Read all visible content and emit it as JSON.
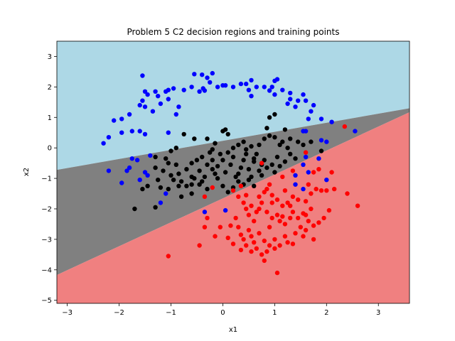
{
  "chart_data": {
    "type": "scatter",
    "title": "Problem 5 C2 decision regions and training points",
    "xlabel": "x1",
    "ylabel": "x2",
    "xlim": [
      -3.2,
      3.6
    ],
    "ylim": [
      -5.1,
      3.5
    ],
    "xticks": [
      -3,
      -2,
      -1,
      0,
      1,
      2,
      3
    ],
    "yticks": [
      -5,
      -4,
      -3,
      -2,
      -1,
      0,
      1,
      2,
      3
    ],
    "grid": false,
    "regions": [
      {
        "class": "blue",
        "color": "#add8e6"
      },
      {
        "class": "black",
        "color": "#808080"
      },
      {
        "class": "red",
        "color": "#f08080"
      }
    ],
    "boundaries": [
      {
        "between": [
          "blue",
          "black"
        ],
        "from": [
          -3.2,
          -0.72
        ],
        "to": [
          3.6,
          1.3
        ]
      },
      {
        "between": [
          "black",
          "red"
        ],
        "from": [
          -3.2,
          -4.17
        ],
        "to": [
          3.6,
          1.17
        ]
      }
    ],
    "series": [
      {
        "color": "#0000ff",
        "points": [
          [
            -1.55,
            2.37
          ],
          [
            -0.55,
            2.42
          ],
          [
            -0.4,
            2.4
          ],
          [
            -0.2,
            2.45
          ],
          [
            -0.3,
            2.3
          ],
          [
            -0.25,
            2.15
          ],
          [
            -0.38,
            1.95
          ],
          [
            -0.6,
            2.0
          ],
          [
            -0.35,
            1.88
          ],
          [
            -0.45,
            1.85
          ],
          [
            -0.1,
            2.0
          ],
          [
            0.0,
            2.05
          ],
          [
            0.05,
            2.05
          ],
          [
            0.2,
            2.0
          ],
          [
            0.35,
            2.1
          ],
          [
            0.45,
            2.1
          ],
          [
            0.55,
            2.22
          ],
          [
            0.65,
            2.0
          ],
          [
            0.5,
            1.9
          ],
          [
            0.55,
            1.7
          ],
          [
            0.8,
            2.0
          ],
          [
            0.9,
            1.88
          ],
          [
            0.95,
            2.0
          ],
          [
            1.0,
            2.2
          ],
          [
            1.05,
            2.25
          ],
          [
            1.0,
            1.75
          ],
          [
            1.15,
            1.9
          ],
          [
            1.3,
            1.8
          ],
          [
            1.3,
            1.6
          ],
          [
            1.25,
            1.45
          ],
          [
            1.4,
            1.35
          ],
          [
            1.45,
            1.55
          ],
          [
            1.55,
            1.75
          ],
          [
            1.6,
            1.55
          ],
          [
            1.7,
            1.2
          ],
          [
            1.75,
            1.4
          ],
          [
            1.65,
            0.95
          ],
          [
            1.9,
            0.95
          ],
          [
            2.1,
            0.85
          ],
          [
            2.55,
            0.55
          ],
          [
            -1.5,
            1.85
          ],
          [
            -1.45,
            1.75
          ],
          [
            -1.3,
            1.85
          ],
          [
            -1.25,
            1.7
          ],
          [
            -1.1,
            1.85
          ],
          [
            -1.05,
            1.9
          ],
          [
            -0.95,
            1.95
          ],
          [
            -0.75,
            1.9
          ],
          [
            -1.05,
            1.6
          ],
          [
            -1.2,
            1.45
          ],
          [
            -1.35,
            1.2
          ],
          [
            -1.5,
            1.35
          ],
          [
            -1.55,
            1.55
          ],
          [
            -1.6,
            1.4
          ],
          [
            -1.8,
            1.1
          ],
          [
            -1.95,
            0.95
          ],
          [
            -2.1,
            0.9
          ],
          [
            -2.2,
            0.35
          ],
          [
            -2.3,
            0.15
          ],
          [
            -1.75,
            0.55
          ],
          [
            -1.95,
            0.5
          ],
          [
            -1.6,
            0.55
          ],
          [
            -1.5,
            0.45
          ],
          [
            -1.05,
            0.5
          ],
          [
            -0.85,
            1.35
          ],
          [
            -0.9,
            1.1
          ],
          [
            -1.4,
            -0.25
          ],
          [
            -1.75,
            -0.35
          ],
          [
            -1.65,
            -0.4
          ],
          [
            -1.8,
            -0.65
          ],
          [
            -1.85,
            -0.75
          ],
          [
            -1.5,
            -0.8
          ],
          [
            -1.45,
            -0.9
          ],
          [
            -1.95,
            -1.15
          ],
          [
            -2.2,
            -0.75
          ],
          [
            -1.6,
            -1.05
          ],
          [
            -1.2,
            -1.8
          ],
          [
            -1.1,
            -1.5
          ],
          [
            -0.35,
            -2.1
          ],
          [
            0.05,
            -2.05
          ],
          [
            1.55,
            0.55
          ],
          [
            1.6,
            0.55
          ],
          [
            1.9,
            0.25
          ],
          [
            2.0,
            0.2
          ],
          [
            1.6,
            -0.3
          ],
          [
            1.55,
            -0.55
          ],
          [
            1.85,
            -0.35
          ],
          [
            1.65,
            -0.8
          ],
          [
            1.4,
            -0.9
          ],
          [
            1.4,
            -1.2
          ],
          [
            2.0,
            -1.05
          ],
          [
            1.55,
            -1.35
          ]
        ]
      },
      {
        "color": "#000000",
        "points": [
          [
            -1.1,
            -0.35
          ],
          [
            -1.05,
            -0.5
          ],
          [
            -1.15,
            -0.75
          ],
          [
            -0.9,
            -0.55
          ],
          [
            -0.85,
            -0.85
          ],
          [
            -1.0,
            -0.9
          ],
          [
            -0.8,
            -1.1
          ],
          [
            -0.7,
            -0.7
          ],
          [
            -0.6,
            -0.5
          ],
          [
            -0.6,
            -0.95
          ],
          [
            -0.5,
            -0.4
          ],
          [
            -0.45,
            -0.75
          ],
          [
            -0.45,
            -1.2
          ],
          [
            -0.35,
            -0.95
          ],
          [
            -0.3,
            -0.55
          ],
          [
            -0.25,
            -0.15
          ],
          [
            -0.2,
            -0.4
          ],
          [
            -0.15,
            -0.85
          ],
          [
            -0.1,
            -1.0
          ],
          [
            -0.05,
            -0.2
          ],
          [
            0.0,
            -0.4
          ],
          [
            0.05,
            -0.8
          ],
          [
            0.1,
            -0.15
          ],
          [
            0.15,
            -0.55
          ],
          [
            0.2,
            -0.3
          ],
          [
            0.25,
            -0.95
          ],
          [
            0.3,
            -1.1
          ],
          [
            0.35,
            -0.65
          ],
          [
            0.4,
            -0.4
          ],
          [
            0.45,
            -0.2
          ],
          [
            0.5,
            -0.7
          ],
          [
            0.55,
            -0.95
          ],
          [
            0.6,
            -0.45
          ],
          [
            0.65,
            -0.2
          ],
          [
            0.7,
            -0.75
          ],
          [
            0.8,
            -0.4
          ],
          [
            0.85,
            -0.65
          ],
          [
            0.95,
            -0.55
          ],
          [
            1.0,
            -0.8
          ],
          [
            1.05,
            -0.3
          ],
          [
            1.1,
            -0.6
          ],
          [
            1.2,
            -0.45
          ],
          [
            1.3,
            -0.2
          ],
          [
            1.4,
            -0.35
          ],
          [
            -1.3,
            -0.3
          ],
          [
            -1.3,
            -0.65
          ],
          [
            -1.25,
            -1.05
          ],
          [
            -1.2,
            -1.3
          ],
          [
            -1.45,
            -1.25
          ],
          [
            -1.55,
            -1.35
          ],
          [
            -1.7,
            -2.0
          ],
          [
            -1.3,
            -1.95
          ],
          [
            -1.05,
            -1.35
          ],
          [
            -0.85,
            -1.25
          ],
          [
            -0.95,
            -1.05
          ],
          [
            -0.7,
            -1.25
          ],
          [
            -0.55,
            -1.0
          ],
          [
            -0.4,
            -1.1
          ],
          [
            -0.3,
            -1.35
          ],
          [
            -0.2,
            -0.7
          ],
          [
            -0.1,
            -0.6
          ],
          [
            0.0,
            -1.25
          ],
          [
            0.1,
            -1.45
          ],
          [
            0.2,
            -1.3
          ],
          [
            0.3,
            -0.85
          ],
          [
            0.4,
            -1.2
          ],
          [
            0.5,
            -1.05
          ],
          [
            0.6,
            -0.35
          ],
          [
            0.75,
            -0.55
          ],
          [
            -0.6,
            -1.2
          ],
          [
            -0.4,
            -0.3
          ],
          [
            0.0,
            0.55
          ],
          [
            0.05,
            0.6
          ],
          [
            0.2,
            0.0
          ],
          [
            0.3,
            0.1
          ],
          [
            0.4,
            0.2
          ],
          [
            0.45,
            -0.05
          ],
          [
            0.55,
            0.05
          ],
          [
            0.7,
            0.1
          ],
          [
            0.8,
            0.3
          ],
          [
            0.9,
            0.4
          ],
          [
            1.0,
            0.35
          ],
          [
            1.1,
            0.1
          ],
          [
            1.15,
            0.2
          ],
          [
            1.25,
            0.0
          ],
          [
            1.3,
            0.3
          ],
          [
            1.45,
            0.2
          ],
          [
            1.55,
            0.1
          ],
          [
            1.7,
            0.2
          ],
          [
            1.9,
            -0.1
          ],
          [
            -0.75,
            0.45
          ],
          [
            -0.55,
            0.3
          ],
          [
            -0.3,
            0.3
          ],
          [
            -0.15,
            0.15
          ],
          [
            0.1,
            0.45
          ],
          [
            -0.9,
            0.0
          ],
          [
            -1.0,
            -0.1
          ],
          [
            -0.2,
            -0.05
          ],
          [
            0.9,
            1.0
          ],
          [
            1.0,
            1.1
          ],
          [
            0.85,
            0.65
          ],
          [
            1.2,
            0.6
          ],
          [
            -0.6,
            -1.5
          ],
          [
            -0.8,
            -1.6
          ],
          [
            0.6,
            -1.25
          ],
          [
            0.75,
            -0.9
          ]
        ]
      },
      {
        "color": "#ff0000",
        "points": [
          [
            0.75,
            -0.5
          ],
          [
            0.9,
            -1.2
          ],
          [
            0.85,
            -1.35
          ],
          [
            0.8,
            -1.45
          ],
          [
            0.95,
            -1.55
          ],
          [
            1.05,
            -1.7
          ],
          [
            1.15,
            -1.9
          ],
          [
            1.25,
            -1.8
          ],
          [
            1.35,
            -1.6
          ],
          [
            1.45,
            -1.7
          ],
          [
            1.6,
            -1.75
          ],
          [
            1.7,
            -1.5
          ],
          [
            1.8,
            -1.35
          ],
          [
            1.9,
            -1.4
          ],
          [
            2.0,
            -1.4
          ],
          [
            2.15,
            -1.35
          ],
          [
            1.6,
            -0.15
          ],
          [
            1.65,
            -1.2
          ],
          [
            1.75,
            -0.8
          ],
          [
            1.85,
            -0.7
          ],
          [
            2.1,
            -0.8
          ],
          [
            2.35,
            0.7
          ],
          [
            2.4,
            -1.5
          ],
          [
            2.6,
            -1.9
          ],
          [
            0.2,
            -1.4
          ],
          [
            0.3,
            -1.6
          ],
          [
            0.4,
            -1.8
          ],
          [
            0.45,
            -2.0
          ],
          [
            0.5,
            -2.2
          ],
          [
            0.55,
            -1.9
          ],
          [
            0.6,
            -2.4
          ],
          [
            0.65,
            -2.1
          ],
          [
            0.7,
            -2.0
          ],
          [
            0.75,
            -1.8
          ],
          [
            0.85,
            -2.1
          ],
          [
            0.9,
            -2.6
          ],
          [
            0.95,
            -2.3
          ],
          [
            1.05,
            -2.2
          ],
          [
            1.1,
            -2.4
          ],
          [
            1.15,
            -2.25
          ],
          [
            1.2,
            -2.5
          ],
          [
            1.3,
            -2.3
          ],
          [
            1.35,
            -2.1
          ],
          [
            1.45,
            -2.3
          ],
          [
            1.55,
            -2.15
          ],
          [
            1.65,
            -2.4
          ],
          [
            1.75,
            -2.55
          ],
          [
            1.85,
            -2.45
          ],
          [
            1.95,
            -2.3
          ],
          [
            2.05,
            -2.05
          ],
          [
            0.25,
            -2.3
          ],
          [
            0.3,
            -2.6
          ],
          [
            0.35,
            -2.85
          ],
          [
            0.4,
            -3.0
          ],
          [
            0.45,
            -3.2
          ],
          [
            0.5,
            -2.7
          ],
          [
            0.55,
            -2.9
          ],
          [
            0.6,
            -3.1
          ],
          [
            0.65,
            -3.3
          ],
          [
            0.7,
            -2.8
          ],
          [
            0.8,
            -3.05
          ],
          [
            0.85,
            -3.4
          ],
          [
            0.9,
            -3.2
          ],
          [
            1.0,
            -3.0
          ],
          [
            1.1,
            -3.2
          ],
          [
            1.2,
            -2.9
          ],
          [
            1.25,
            -3.1
          ],
          [
            1.4,
            -2.8
          ],
          [
            1.5,
            -2.6
          ],
          [
            1.6,
            -2.7
          ],
          [
            1.75,
            -3.0
          ],
          [
            -0.35,
            -1.6
          ],
          [
            -0.2,
            -1.3
          ],
          [
            -0.3,
            -2.3
          ],
          [
            -0.35,
            -2.6
          ],
          [
            -0.45,
            -3.2
          ],
          [
            -0.15,
            -2.9
          ],
          [
            -0.05,
            -2.6
          ],
          [
            0.15,
            -2.55
          ],
          [
            0.1,
            -2.95
          ],
          [
            0.2,
            -3.15
          ],
          [
            0.35,
            -3.35
          ],
          [
            0.55,
            -3.4
          ],
          [
            0.75,
            -3.5
          ],
          [
            0.8,
            -3.7
          ],
          [
            1.05,
            -4.1
          ],
          [
            1.0,
            -3.3
          ],
          [
            1.35,
            -3.15
          ],
          [
            -1.05,
            -3.55
          ],
          [
            0.35,
            -1.25
          ],
          [
            0.45,
            -1.55
          ],
          [
            0.7,
            -1.6
          ],
          [
            1.2,
            -1.4
          ],
          [
            1.3,
            -1.9
          ],
          [
            1.7,
            -2.0
          ],
          [
            1.15,
            -0.95
          ],
          [
            1.35,
            -0.75
          ],
          [
            1.6,
            -2.2
          ],
          [
            0.95,
            -1.8
          ],
          [
            1.55,
            -2.9
          ]
        ]
      }
    ]
  }
}
